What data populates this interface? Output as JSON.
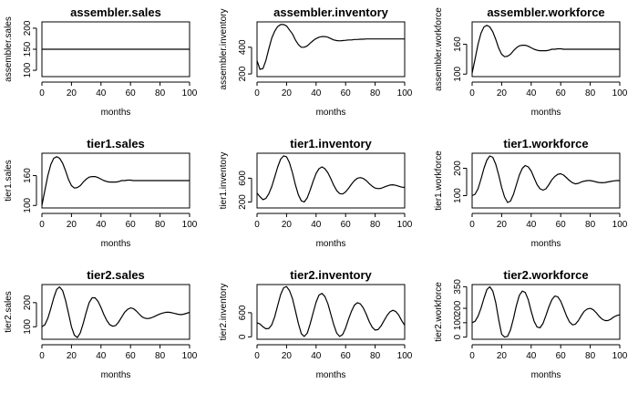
{
  "chart_data": [
    {
      "type": "line",
      "title": "assembler.sales",
      "xlabel": "months",
      "ylabel": "assembler.sales",
      "xlim": [
        0,
        100
      ],
      "ylim": [
        85,
        215
      ],
      "xticks": [
        0,
        20,
        40,
        60,
        80,
        100
      ],
      "yticks": [
        100,
        150,
        200
      ],
      "yticklabels": [
        "100",
        "150",
        "200"
      ],
      "x": [
        0,
        100
      ],
      "y": [
        150,
        150
      ]
    },
    {
      "type": "line",
      "title": "assembler.inventory",
      "xlabel": "months",
      "ylabel": "assembler.inventory",
      "xlim": [
        0,
        100
      ],
      "ylim": [
        180,
        590
      ],
      "xticks": [
        0,
        20,
        40,
        60,
        80,
        100
      ],
      "yticks": [
        200,
        400
      ],
      "yticklabels": [
        "200",
        "400"
      ],
      "x": [
        0,
        2,
        4,
        6,
        8,
        10,
        12,
        14,
        16,
        18,
        20,
        22,
        24,
        26,
        28,
        30,
        32,
        34,
        36,
        38,
        40,
        42,
        44,
        46,
        48,
        50,
        52,
        54,
        56,
        58,
        60,
        62,
        64,
        66,
        68,
        70,
        72,
        74,
        76,
        78,
        80,
        85,
        90,
        95,
        100
      ],
      "y": [
        300,
        235,
        240,
        300,
        390,
        470,
        520,
        555,
        570,
        570,
        560,
        530,
        500,
        455,
        420,
        400,
        400,
        410,
        430,
        450,
        465,
        475,
        480,
        480,
        475,
        465,
        455,
        450,
        448,
        450,
        452,
        455,
        455,
        458,
        458,
        460,
        460,
        462,
        462,
        462,
        462,
        462,
        462,
        462,
        462
      ]
    },
    {
      "type": "line",
      "title": "assembler.workforce",
      "xlabel": "months",
      "ylabel": "assembler.workforce",
      "xlim": [
        0,
        100
      ],
      "ylim": [
        95,
        205
      ],
      "xticks": [
        0,
        20,
        40,
        60,
        80,
        100
      ],
      "yticks": [
        100,
        160
      ],
      "yticklabels": [
        "100",
        "160"
      ],
      "x": [
        0,
        2,
        4,
        6,
        8,
        10,
        12,
        14,
        16,
        18,
        20,
        22,
        24,
        26,
        28,
        30,
        32,
        34,
        36,
        38,
        40,
        42,
        44,
        46,
        48,
        50,
        52,
        54,
        56,
        58,
        60,
        62,
        64,
        66,
        68,
        70,
        75,
        80,
        85,
        90,
        95,
        100
      ],
      "y": [
        102,
        130,
        160,
        182,
        195,
        198,
        195,
        185,
        170,
        152,
        140,
        135,
        136,
        140,
        147,
        153,
        157,
        158,
        158,
        156,
        153,
        150,
        148,
        147,
        147,
        147,
        148,
        150,
        150,
        151,
        151,
        150,
        150,
        150,
        150,
        150,
        150,
        150,
        150,
        150,
        150,
        150
      ]
    },
    {
      "type": "line",
      "title": "tier1.sales",
      "xlabel": "months",
      "ylabel": "tier1.sales",
      "xlim": [
        0,
        100
      ],
      "ylim": [
        95,
        205
      ],
      "xticks": [
        0,
        20,
        40,
        60,
        80,
        100
      ],
      "yticks": [
        100,
        160
      ],
      "yticklabels": [
        "100",
        "160"
      ],
      "x": [
        0,
        2,
        4,
        6,
        8,
        10,
        12,
        14,
        16,
        18,
        20,
        22,
        24,
        26,
        28,
        30,
        32,
        34,
        36,
        38,
        40,
        42,
        44,
        46,
        48,
        50,
        52,
        54,
        56,
        58,
        60,
        62,
        64,
        66,
        68,
        70,
        75,
        80,
        85,
        90,
        95,
        100
      ],
      "y": [
        100,
        130,
        160,
        182,
        195,
        198,
        195,
        185,
        170,
        152,
        140,
        135,
        136,
        140,
        147,
        153,
        157,
        158,
        158,
        156,
        153,
        150,
        148,
        147,
        147,
        147,
        148,
        150,
        150,
        151,
        151,
        150,
        150,
        150,
        150,
        150,
        150,
        150,
        150,
        150,
        150,
        150
      ]
    },
    {
      "type": "line",
      "title": "tier1.inventory",
      "xlabel": "months",
      "ylabel": "tier1.inventory",
      "xlim": [
        0,
        100
      ],
      "ylim": [
        100,
        1020
      ],
      "xticks": [
        0,
        20,
        40,
        60,
        80,
        100
      ],
      "yticks": [
        200,
        600
      ],
      "yticklabels": [
        "200",
        "600"
      ],
      "x": [
        0,
        2,
        4,
        6,
        8,
        10,
        12,
        14,
        16,
        18,
        20,
        22,
        24,
        26,
        28,
        30,
        32,
        34,
        36,
        38,
        40,
        42,
        44,
        46,
        48,
        50,
        52,
        54,
        56,
        58,
        60,
        62,
        64,
        66,
        68,
        70,
        72,
        74,
        76,
        78,
        80,
        82,
        84,
        86,
        88,
        90,
        92,
        94,
        96,
        98,
        100
      ],
      "y": [
        350,
        290,
        240,
        260,
        340,
        460,
        620,
        790,
        920,
        975,
        960,
        860,
        690,
        490,
        320,
        220,
        200,
        270,
        400,
        550,
        680,
        760,
        790,
        760,
        690,
        590,
        480,
        390,
        340,
        335,
        370,
        430,
        500,
        560,
        600,
        610,
        595,
        560,
        510,
        465,
        435,
        425,
        430,
        450,
        470,
        485,
        490,
        480,
        465,
        450,
        445
      ]
    },
    {
      "type": "line",
      "title": "tier1.workforce",
      "xlabel": "months",
      "ylabel": "tier1.workforce",
      "xlim": [
        0,
        100
      ],
      "ylim": [
        55,
        255
      ],
      "xticks": [
        0,
        20,
        40,
        60,
        80,
        100
      ],
      "yticks": [
        100,
        200
      ],
      "yticklabels": [
        "100",
        "200"
      ],
      "x": [
        0,
        2,
        4,
        6,
        8,
        10,
        12,
        14,
        16,
        18,
        20,
        22,
        24,
        26,
        28,
        30,
        32,
        34,
        36,
        38,
        40,
        42,
        44,
        46,
        48,
        50,
        52,
        54,
        56,
        58,
        60,
        62,
        64,
        66,
        68,
        70,
        72,
        74,
        76,
        78,
        80,
        82,
        84,
        86,
        88,
        90,
        92,
        94,
        96,
        98,
        100
      ],
      "y": [
        100,
        105,
        125,
        160,
        200,
        230,
        245,
        240,
        215,
        175,
        130,
        95,
        75,
        80,
        105,
        140,
        175,
        200,
        210,
        205,
        190,
        165,
        140,
        125,
        120,
        125,
        140,
        158,
        170,
        178,
        180,
        175,
        165,
        155,
        147,
        143,
        145,
        150,
        153,
        155,
        155,
        153,
        150,
        148,
        147,
        148,
        150,
        152,
        154,
        155,
        155
      ]
    },
    {
      "type": "line",
      "title": "tier2.sales",
      "xlabel": "months",
      "ylabel": "tier2.sales",
      "xlim": [
        0,
        100
      ],
      "ylim": [
        48,
        275
      ],
      "xticks": [
        0,
        20,
        40,
        60,
        80,
        100
      ],
      "yticks": [
        100,
        200
      ],
      "yticklabels": [
        "100",
        "200"
      ],
      "x": [
        0,
        2,
        4,
        6,
        8,
        10,
        12,
        14,
        16,
        18,
        20,
        22,
        24,
        26,
        28,
        30,
        32,
        34,
        36,
        38,
        40,
        42,
        44,
        46,
        48,
        50,
        52,
        54,
        56,
        58,
        60,
        62,
        64,
        66,
        68,
        70,
        72,
        74,
        76,
        78,
        80,
        82,
        84,
        86,
        88,
        90,
        92,
        94,
        96,
        98,
        100
      ],
      "y": [
        100,
        108,
        135,
        175,
        220,
        255,
        265,
        250,
        210,
        155,
        100,
        65,
        55,
        75,
        115,
        160,
        200,
        220,
        220,
        205,
        180,
        150,
        125,
        108,
        102,
        105,
        120,
        140,
        160,
        172,
        178,
        175,
        165,
        152,
        140,
        135,
        134,
        137,
        142,
        148,
        153,
        157,
        160,
        160,
        158,
        155,
        152,
        150,
        152,
        156,
        160
      ]
    },
    {
      "type": "line",
      "title": "tier2.inventory",
      "xlabel": "months",
      "ylabel": "tier2.inventory",
      "xlim": [
        0,
        100
      ],
      "ylim": [
        -60,
        1300
      ],
      "xticks": [
        0,
        20,
        40,
        60,
        80,
        100
      ],
      "yticks": [
        0,
        600
      ],
      "yticklabels": [
        "0",
        "600"
      ],
      "x": [
        0,
        2,
        4,
        6,
        8,
        10,
        12,
        14,
        16,
        18,
        20,
        22,
        24,
        26,
        28,
        30,
        32,
        34,
        36,
        38,
        40,
        42,
        44,
        46,
        48,
        50,
        52,
        54,
        56,
        58,
        60,
        62,
        64,
        66,
        68,
        70,
        72,
        74,
        76,
        78,
        80,
        82,
        84,
        86,
        88,
        90,
        92,
        94,
        96,
        98,
        100
      ],
      "y": [
        350,
        320,
        250,
        200,
        210,
        300,
        500,
        780,
        1050,
        1220,
        1250,
        1150,
        950,
        650,
        330,
        80,
        10,
        90,
        320,
        600,
        860,
        1040,
        1080,
        1000,
        820,
        560,
        300,
        90,
        10,
        60,
        220,
        440,
        640,
        790,
        850,
        820,
        720,
        560,
        380,
        240,
        170,
        180,
        270,
        400,
        530,
        620,
        660,
        630,
        540,
        400,
        290
      ]
    },
    {
      "type": "line",
      "title": "tier2.workforce",
      "xlabel": "months",
      "ylabel": "tier2.workforce",
      "xlim": [
        0,
        100
      ],
      "ylim": [
        -15,
        365
      ],
      "xticks": [
        0,
        20,
        40,
        60,
        80,
        100
      ],
      "yticks": [
        0,
        100,
        200,
        350
      ],
      "yticklabels": [
        "0",
        "100",
        "200",
        "350"
      ],
      "x": [
        0,
        2,
        4,
        6,
        8,
        10,
        12,
        14,
        16,
        18,
        20,
        22,
        24,
        26,
        28,
        30,
        32,
        34,
        36,
        38,
        40,
        42,
        44,
        46,
        48,
        50,
        52,
        54,
        56,
        58,
        60,
        62,
        64,
        66,
        68,
        70,
        72,
        74,
        76,
        78,
        80,
        82,
        84,
        86,
        88,
        90,
        92,
        94,
        96,
        98,
        100
      ],
      "y": [
        100,
        110,
        145,
        200,
        270,
        330,
        350,
        320,
        240,
        120,
        20,
        0,
        5,
        50,
        130,
        220,
        290,
        320,
        310,
        260,
        180,
        110,
        70,
        65,
        95,
        150,
        210,
        260,
        285,
        280,
        250,
        200,
        145,
        105,
        85,
        90,
        115,
        150,
        180,
        195,
        200,
        190,
        170,
        145,
        125,
        115,
        115,
        125,
        140,
        150,
        155
      ]
    }
  ]
}
